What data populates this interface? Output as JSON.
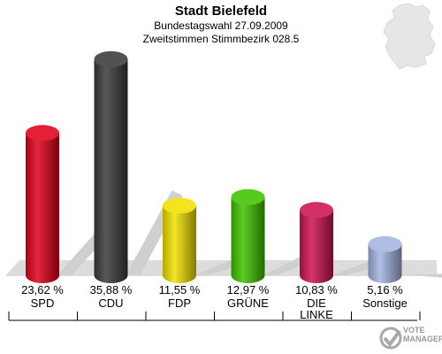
{
  "header": {
    "title": "Stadt Bielefeld",
    "subtitle": "Bundestagswahl 27.09.2009",
    "subtitle2": "Zweitstimmen Stimmbezirk 028.5"
  },
  "brand": {
    "line1": "VOTE",
    "line2": "MANAGER"
  },
  "chart_data": {
    "type": "bar",
    "title": "Stadt Bielefeld",
    "subtitle": "Bundestagswahl 27.09.2009 · Zweitstimmen Stimmbezirk 028.5",
    "categories": [
      "SPD",
      "CDU",
      "FDP",
      "GRÜNE",
      "DIE LINKE",
      "Sonstige"
    ],
    "category_lines": [
      [
        "SPD"
      ],
      [
        "CDU"
      ],
      [
        "FDP"
      ],
      [
        "GRÜNE"
      ],
      [
        "DIE",
        "LINKE"
      ],
      [
        "Sonstige"
      ]
    ],
    "values": [
      23.62,
      35.88,
      11.55,
      12.97,
      10.83,
      5.16
    ],
    "value_labels": [
      "23,62 %",
      "35,88 %",
      "11,55 %",
      "12,97 %",
      "10,83 %",
      "5,16 %"
    ],
    "colors": [
      "#e2001a",
      "#3a3a3a",
      "#f2e000",
      "#3ec300",
      "#cc1450",
      "#a3b4e0"
    ],
    "unit": "%",
    "ylim": [
      0,
      36
    ],
    "grid": false,
    "legend": "none"
  }
}
